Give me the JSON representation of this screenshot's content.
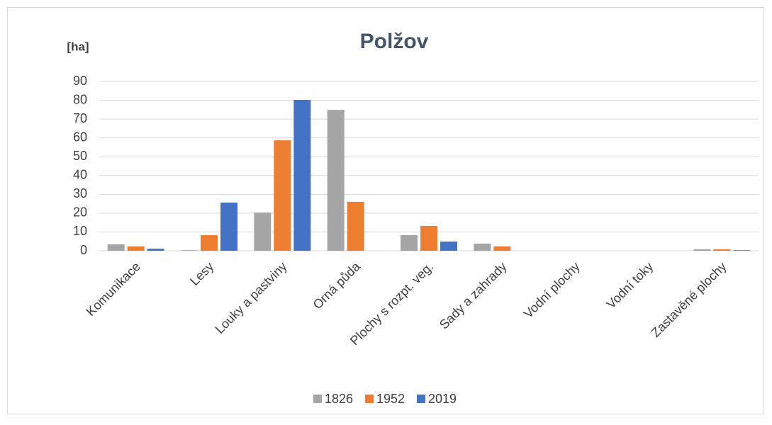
{
  "chart_data": {
    "type": "bar",
    "title": "Polžov",
    "y_label": "[ha]",
    "categories": [
      "Komunikace",
      "Lesy",
      "Louky a pastviny",
      "Orná půda",
      "Plochy s rozpt. veg.",
      "Sady a zahrady",
      "Vodní plochy",
      "Vodní toky",
      "Zastavěné plochy"
    ],
    "series": [
      {
        "name": "1826",
        "color": "#a5a5a5",
        "values": [
          3.4,
          0.3,
          20.3,
          74.9,
          8.3,
          3.8,
          0,
          0,
          0.8
        ]
      },
      {
        "name": "1952",
        "color": "#ed7d31",
        "values": [
          2.3,
          8.3,
          58.7,
          26,
          13.2,
          2.3,
          0,
          0,
          0.8
        ]
      },
      {
        "name": "2019",
        "color": "#4472c4",
        "values": [
          1.1,
          25.6,
          80.2,
          0,
          4.9,
          0,
          0,
          0,
          0.3
        ]
      }
    ],
    "ylim": [
      0,
      90
    ],
    "yticks": [
      0,
      10,
      20,
      30,
      40,
      50,
      60,
      70,
      80,
      90
    ],
    "grid": true,
    "legend": "bottom"
  }
}
